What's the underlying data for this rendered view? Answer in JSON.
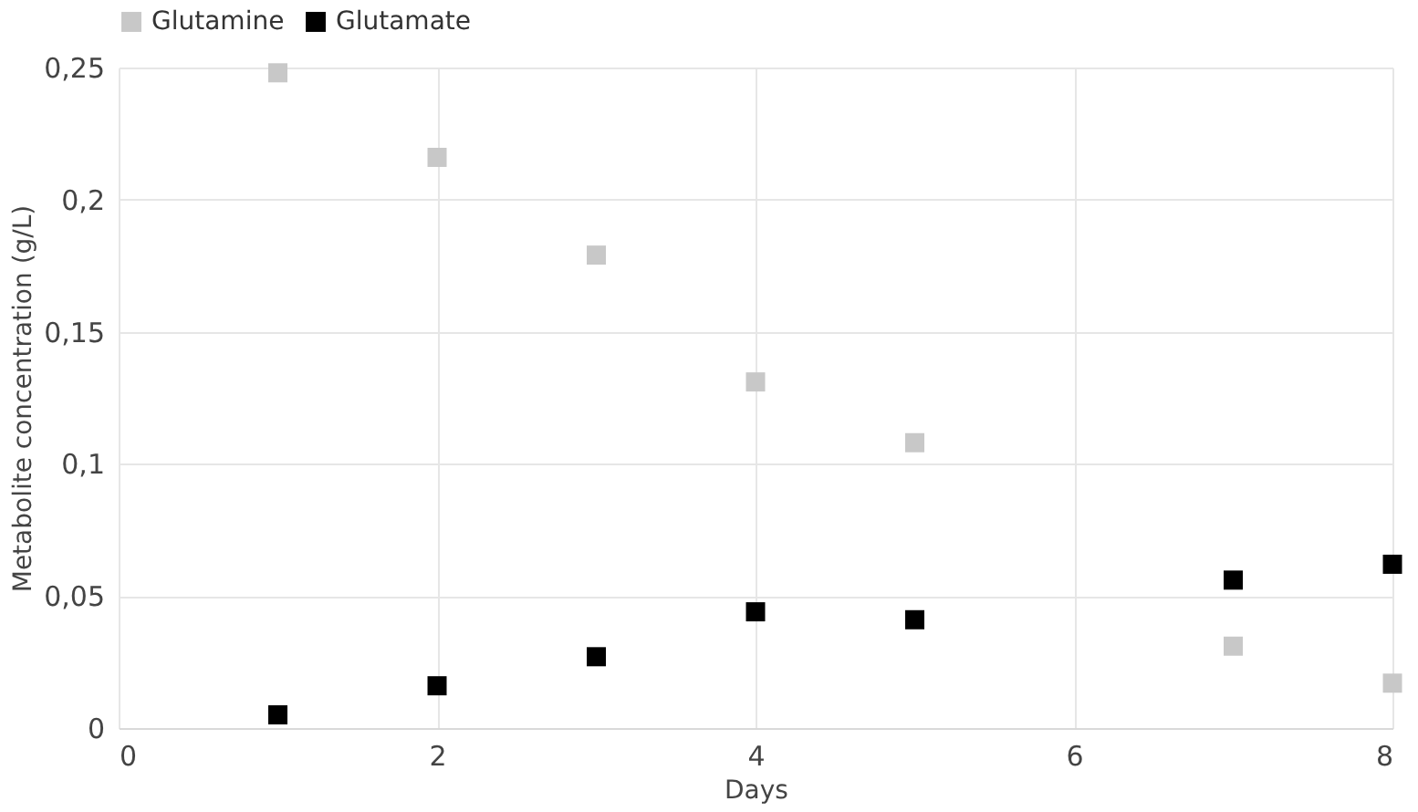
{
  "chart_data": {
    "type": "scatter",
    "xlabel": "Days",
    "ylabel": "Metabolite concentration (g/L)",
    "x": [
      1,
      2,
      3,
      4,
      5,
      7,
      8
    ],
    "series": [
      {
        "name": "Glutamine",
        "color": "#c8c8c8",
        "values": [
          0.248,
          0.216,
          0.179,
          0.131,
          0.108,
          0.031,
          0.017
        ]
      },
      {
        "name": "Glutamate",
        "color": "#000000",
        "values": [
          0.005,
          0.016,
          0.027,
          0.044,
          0.041,
          0.056,
          0.062
        ]
      }
    ],
    "xlim": [
      0,
      8
    ],
    "xticks": [
      0,
      2,
      4,
      6,
      8
    ],
    "ylim": [
      0,
      0.25
    ],
    "yticks": [
      0,
      {
        "value": 0.05,
        "label": "0,05"
      },
      {
        "value": 0.1,
        "label": "0,1"
      },
      {
        "value": 0.15,
        "label": "0,15"
      },
      {
        "value": 0.2,
        "label": "0,2"
      },
      {
        "value": 0.25,
        "label": "0,25"
      }
    ],
    "grid": true,
    "legend": "top",
    "marker": "square"
  }
}
